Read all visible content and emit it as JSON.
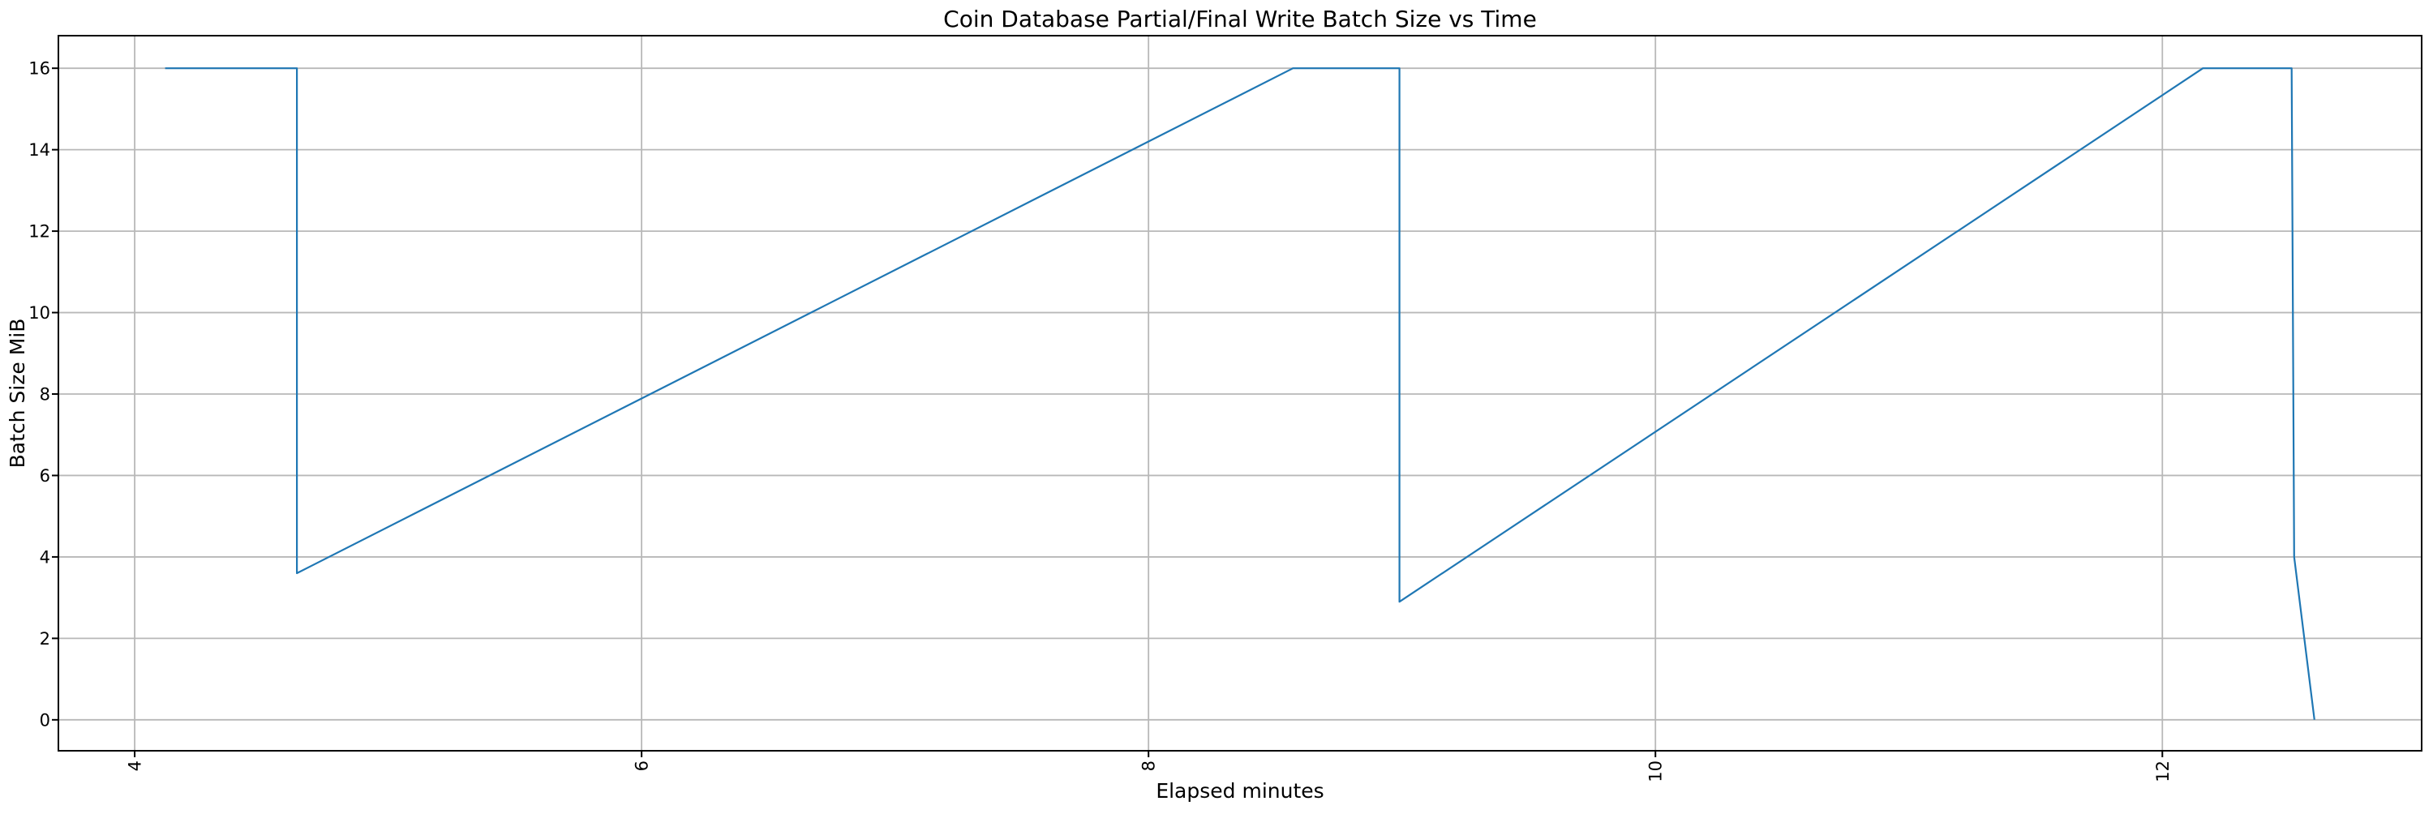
{
  "chart_data": {
    "type": "line",
    "title": "Coin Database Partial/Final Write Batch Size vs Time",
    "xlabel": "Elapsed minutes",
    "ylabel": "Batch Size MiB",
    "x_ticks": [
      4,
      6,
      8,
      10,
      12
    ],
    "y_ticks": [
      0,
      2,
      4,
      6,
      8,
      10,
      12,
      14,
      16
    ],
    "x_tick_rotation": 90,
    "xlim": [
      3.699,
      13.023
    ],
    "ylim": [
      -0.76,
      16.8
    ],
    "grid": true,
    "legend": "none",
    "colors": {
      "line": "#1f77b4",
      "grid": "#b8b8b8",
      "spine": "#000000",
      "text": "#000000",
      "background": "#ffffff"
    },
    "series": [
      {
        "name": "batch-size-mib",
        "points": [
          [
            4.12,
            16
          ],
          [
            4.64,
            16
          ],
          [
            4.64,
            3.6
          ],
          [
            8.57,
            16
          ],
          [
            8.99,
            16
          ],
          [
            8.99,
            2.9
          ],
          [
            12.16,
            16
          ],
          [
            12.51,
            16
          ],
          [
            12.52,
            4.0
          ],
          [
            12.6,
            0
          ]
        ]
      }
    ]
  }
}
